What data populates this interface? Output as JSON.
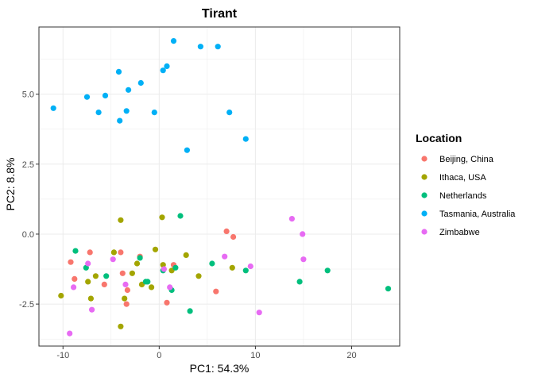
{
  "chart_data": {
    "type": "scatter",
    "title": "Tirant",
    "xlabel": "PC1: 54.3%",
    "ylabel": "PC2: 8.8%",
    "xlim": [
      -12.5,
      25
    ],
    "ylim": [
      -4,
      7.4
    ],
    "xticks": [
      -10,
      0,
      10,
      20
    ],
    "yticks": [
      -2.5,
      0.0,
      2.5,
      5.0
    ],
    "xtick_labels": [
      "-10",
      "0",
      "10",
      "20"
    ],
    "ytick_labels": [
      "-2.5",
      "0.0",
      "2.5",
      "5.0"
    ],
    "grid": true,
    "legend": {
      "title": "Location",
      "position": "right"
    },
    "series": [
      {
        "name": "Beijing, China",
        "color": "#F8766D",
        "points": [
          [
            -7.2,
            -0.65
          ],
          [
            -9.2,
            -1.0
          ],
          [
            -8.8,
            -1.6
          ],
          [
            -5.7,
            -1.8
          ],
          [
            -4.0,
            -0.65
          ],
          [
            -3.8,
            -1.4
          ],
          [
            -3.3,
            -2.0
          ],
          [
            -3.4,
            -2.5
          ],
          [
            -2.0,
            -0.8
          ],
          [
            0.8,
            -2.45
          ],
          [
            1.5,
            -1.1
          ],
          [
            5.9,
            -2.05
          ],
          [
            7.0,
            0.1
          ],
          [
            7.7,
            -0.1
          ]
        ]
      },
      {
        "name": "Ithaca, USA",
        "color": "#A3A500",
        "points": [
          [
            -10.2,
            -2.2
          ],
          [
            -7.4,
            -1.7
          ],
          [
            -7.1,
            -2.3
          ],
          [
            -6.6,
            -1.5
          ],
          [
            -4.7,
            -0.65
          ],
          [
            -4.0,
            0.5
          ],
          [
            -4.0,
            -3.3
          ],
          [
            -3.6,
            -2.3
          ],
          [
            -2.8,
            -1.4
          ],
          [
            -2.3,
            -1.05
          ],
          [
            -1.8,
            -1.8
          ],
          [
            -0.8,
            -1.9
          ],
          [
            -0.4,
            -0.55
          ],
          [
            0.3,
            0.6
          ],
          [
            0.4,
            -1.1
          ],
          [
            1.3,
            -1.3
          ],
          [
            2.8,
            -0.75
          ],
          [
            4.1,
            -1.5
          ],
          [
            7.6,
            -1.2
          ]
        ]
      },
      {
        "name": "Netherlands",
        "color": "#00BF7D",
        "points": [
          [
            -8.7,
            -0.6
          ],
          [
            -7.6,
            -1.2
          ],
          [
            -5.5,
            -1.5
          ],
          [
            -2.0,
            -0.85
          ],
          [
            -1.4,
            -1.7
          ],
          [
            -1.2,
            -1.7
          ],
          [
            0.4,
            -1.3
          ],
          [
            1.3,
            -2.0
          ],
          [
            1.7,
            -1.2
          ],
          [
            2.2,
            0.65
          ],
          [
            3.2,
            -2.75
          ],
          [
            5.5,
            -1.05
          ],
          [
            9.0,
            -1.3
          ],
          [
            14.6,
            -1.7
          ],
          [
            17.5,
            -1.3
          ],
          [
            23.8,
            -1.95
          ]
        ]
      },
      {
        "name": "Tasmania, Australia",
        "color": "#00B0F6",
        "points": [
          [
            -11.0,
            4.5
          ],
          [
            -7.5,
            4.9
          ],
          [
            -6.3,
            4.35
          ],
          [
            -5.6,
            4.95
          ],
          [
            -4.2,
            5.8
          ],
          [
            -4.1,
            4.05
          ],
          [
            -3.4,
            4.4
          ],
          [
            -3.2,
            5.15
          ],
          [
            -1.9,
            5.4
          ],
          [
            -0.5,
            4.35
          ],
          [
            0.4,
            5.85
          ],
          [
            0.8,
            6.0
          ],
          [
            1.5,
            6.9
          ],
          [
            2.9,
            3.0
          ],
          [
            4.3,
            6.7
          ],
          [
            6.1,
            6.7
          ],
          [
            7.3,
            4.35
          ],
          [
            9.0,
            3.4
          ]
        ]
      },
      {
        "name": "Zimbabwe",
        "color": "#E76BF3",
        "points": [
          [
            -9.3,
            -3.55
          ],
          [
            -8.9,
            -1.9
          ],
          [
            -7.4,
            -1.05
          ],
          [
            -7.0,
            -2.7
          ],
          [
            -4.8,
            -0.9
          ],
          [
            -3.5,
            -1.8
          ],
          [
            0.5,
            -1.25
          ],
          [
            1.1,
            -1.9
          ],
          [
            6.8,
            -0.8
          ],
          [
            9.5,
            -1.15
          ],
          [
            10.4,
            -2.8
          ],
          [
            13.8,
            0.55
          ],
          [
            14.9,
            0.0
          ],
          [
            15.0,
            -0.9
          ]
        ]
      }
    ]
  }
}
